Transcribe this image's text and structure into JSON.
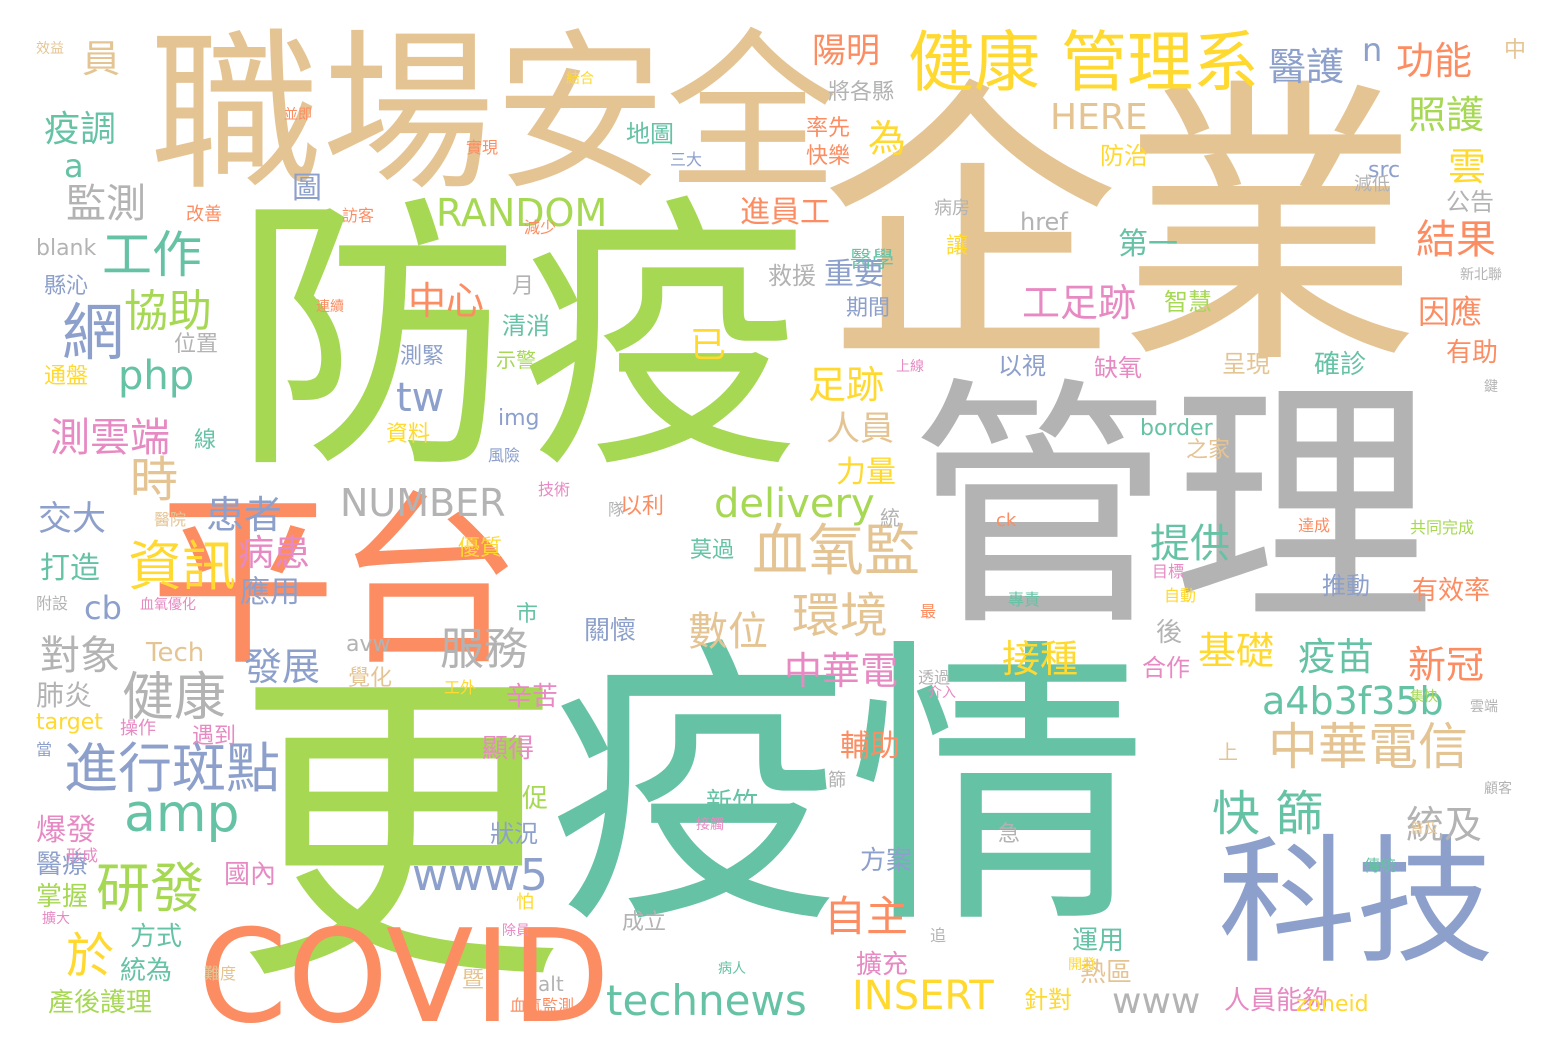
{
  "words": [
    {
      "text": "企業",
      "color": "#e5c494"
    },
    {
      "text": "防疫",
      "color": "#a6d854"
    },
    {
      "text": "疫情",
      "color": "#66c2a5"
    },
    {
      "text": "管理",
      "color": "#b3b3b3"
    },
    {
      "text": "職場安全",
      "color": "#e5c494"
    },
    {
      "text": "平台",
      "color": "#fc8d62"
    },
    {
      "text": "更",
      "color": "#a6d854"
    },
    {
      "text": "COVID",
      "color": "#fc8d62"
    },
    {
      "text": "科技",
      "color": "#8da0cb"
    },
    {
      "text": "健康 管理系",
      "color": "#ffd92f"
    },
    {
      "text": "血氧監",
      "color": "#e5c494"
    },
    {
      "text": "中華電信",
      "color": "#e5c494"
    },
    {
      "text": "進行斑點",
      "color": "#8da0cb"
    },
    {
      "text": "健康",
      "color": "#b3b3b3"
    },
    {
      "text": "環境",
      "color": "#e5c494"
    },
    {
      "text": "資訊",
      "color": "#ffd92f"
    },
    {
      "text": "研發",
      "color": "#a6d854"
    },
    {
      "text": "amp",
      "color": "#66c2a5"
    },
    {
      "text": "technews",
      "color": "#66c2a5"
    },
    {
      "text": "INSERT",
      "color": "#ffd92f"
    },
    {
      "text": "快 篩",
      "color": "#66c2a5"
    },
    {
      "text": "www5",
      "color": "#8da0cb"
    },
    {
      "text": "a4b3f35b",
      "color": "#66c2a5"
    },
    {
      "text": "RANDOM",
      "color": "#a6d854"
    },
    {
      "text": "NUMBER",
      "color": "#b3b3b3"
    },
    {
      "text": "delivery",
      "color": "#a6d854"
    },
    {
      "text": "服務",
      "color": "#b3b3b3"
    },
    {
      "text": "數位",
      "color": "#e5c494"
    },
    {
      "text": "中華電",
      "color": "#e78ac3"
    },
    {
      "text": "發展",
      "color": "#8da0cb"
    },
    {
      "text": "工作",
      "color": "#66c2a5"
    },
    {
      "text": "網",
      "color": "#8da0cb"
    },
    {
      "text": "協助",
      "color": "#a6d854"
    },
    {
      "text": "php",
      "color": "#66c2a5"
    },
    {
      "text": "測雲端",
      "color": "#e78ac3"
    },
    {
      "text": "時",
      "color": "#e5c494"
    },
    {
      "text": "患者",
      "color": "#8da0cb"
    },
    {
      "text": "病患",
      "color": "#e78ac3"
    },
    {
      "text": "自主",
      "color": "#fc8d62"
    },
    {
      "text": "基礎",
      "color": "#ffd92f"
    },
    {
      "text": "疫苗",
      "color": "#66c2a5"
    },
    {
      "text": "新冠",
      "color": "#fc8d62"
    },
    {
      "text": "接種",
      "color": "#ffd92f"
    },
    {
      "text": "提供",
      "color": "#66c2a5"
    },
    {
      "text": "工足跡",
      "color": "#e78ac3"
    },
    {
      "text": "中心",
      "color": "#fc8d62"
    },
    {
      "text": "足跡",
      "color": "#ffd92f"
    },
    {
      "text": "人員",
      "color": "#e5c494"
    },
    {
      "text": "tw",
      "color": "#8da0cb"
    },
    {
      "text": "結果",
      "color": "#fc8d62"
    },
    {
      "text": "統及",
      "color": "#b3b3b3"
    },
    {
      "text": "www",
      "color": "#b3b3b3"
    },
    {
      "text": "於",
      "color": "#ffd92f"
    },
    {
      "text": "對象",
      "color": "#b3b3b3"
    },
    {
      "text": "交大",
      "color": "#8da0cb"
    },
    {
      "text": "監測",
      "color": "#b3b3b3"
    },
    {
      "text": "疫調",
      "color": "#66c2a5"
    },
    {
      "text": "陽明",
      "color": "#fc8d62"
    },
    {
      "text": "醫護",
      "color": "#8da0cb"
    },
    {
      "text": "功能",
      "color": "#fc8d62"
    },
    {
      "text": "照護",
      "color": "#a6d854"
    },
    {
      "text": "HERE",
      "color": "#e5c494"
    },
    {
      "text": "雲",
      "color": "#ffd92f"
    },
    {
      "text": "為",
      "color": "#ffd92f"
    },
    {
      "text": "圖",
      "color": "#8da0cb"
    },
    {
      "text": "員",
      "color": "#e5c494"
    },
    {
      "text": "n",
      "color": "#8da0cb"
    },
    {
      "text": "a",
      "color": "#66c2a5"
    },
    {
      "text": "進員工",
      "color": "#fc8d62"
    },
    {
      "text": "第一",
      "color": "#66c2a5"
    },
    {
      "text": "重要",
      "color": "#8da0cb"
    },
    {
      "text": "因應",
      "color": "#fc8d62"
    },
    {
      "text": "應用",
      "color": "#8da0cb"
    },
    {
      "text": "輔助",
      "color": "#fc8d62"
    },
    {
      "text": "力量",
      "color": "#ffd92f"
    },
    {
      "text": "已",
      "color": "#ffd92f"
    },
    {
      "text": "cb",
      "color": "#8da0cb"
    },
    {
      "text": "Tech",
      "color": "#e5c494"
    },
    {
      "text": "肺炎",
      "color": "#b3b3b3"
    },
    {
      "text": "打造",
      "color": "#66c2a5"
    },
    {
      "text": "爆發",
      "color": "#e78ac3"
    },
    {
      "text": "醫療",
      "color": "#8da0cb"
    },
    {
      "text": "掌握",
      "color": "#a6d854"
    },
    {
      "text": "產後護理",
      "color": "#a6d854"
    },
    {
      "text": "統為",
      "color": "#66c2a5"
    },
    {
      "text": "方式",
      "color": "#66c2a5"
    },
    {
      "text": "國內",
      "color": "#e78ac3"
    },
    {
      "text": "及促",
      "color": "#a6d854"
    },
    {
      "text": "狀況",
      "color": "#8da0cb"
    },
    {
      "text": "顯得",
      "color": "#e78ac3"
    },
    {
      "text": "辛苦",
      "color": "#e78ac3"
    },
    {
      "text": "新竹",
      "color": "#66c2a5"
    },
    {
      "text": "擴充",
      "color": "#e78ac3"
    },
    {
      "text": "方案",
      "color": "#8da0cb"
    },
    {
      "text": "運用",
      "color": "#66c2a5"
    },
    {
      "text": "熱區",
      "color": "#e5c494"
    },
    {
      "text": "針對",
      "color": "#ffd92f"
    },
    {
      "text": "人員能夠",
      "color": "#e78ac3"
    },
    {
      "text": "zoneid",
      "color": "#ffd92f"
    },
    {
      "text": "有效率",
      "color": "#fc8d62"
    },
    {
      "text": "推動",
      "color": "#8da0cb"
    },
    {
      "text": "合作",
      "color": "#e78ac3"
    },
    {
      "text": "後",
      "color": "#b3b3b3"
    },
    {
      "text": "關懷",
      "color": "#8da0cb"
    },
    {
      "text": "有助",
      "color": "#fc8d62"
    },
    {
      "text": "公告",
      "color": "#b3b3b3"
    },
    {
      "text": "確診",
      "color": "#66c2a5"
    },
    {
      "text": "呈現",
      "color": "#e5c494"
    },
    {
      "text": "智慧",
      "color": "#a6d854"
    },
    {
      "text": "缺氧",
      "color": "#e78ac3"
    },
    {
      "text": "以視",
      "color": "#8da0cb"
    },
    {
      "text": "border",
      "color": "#66c2a5"
    },
    {
      "text": "之家",
      "color": "#e5c494"
    },
    {
      "text": "src",
      "color": "#8da0cb"
    },
    {
      "text": "href",
      "color": "#b3b3b3"
    },
    {
      "text": "防治",
      "color": "#ffd92f"
    },
    {
      "text": "減低",
      "color": "#b3b3b3"
    },
    {
      "text": "率先",
      "color": "#fc8d62"
    },
    {
      "text": "快樂",
      "color": "#fc8d62"
    },
    {
      "text": "地圖",
      "color": "#66c2a5"
    },
    {
      "text": "將各縣",
      "color": "#b3b3b3"
    },
    {
      "text": "醫學",
      "color": "#66c2a5"
    },
    {
      "text": "期間",
      "color": "#8da0cb"
    },
    {
      "text": "救援",
      "color": "#b3b3b3"
    },
    {
      "text": "讓",
      "color": "#ffd92f"
    },
    {
      "text": "病房",
      "color": "#b3b3b3"
    },
    {
      "text": "清消",
      "color": "#66c2a5"
    },
    {
      "text": "測緊",
      "color": "#8da0cb"
    },
    {
      "text": "示警",
      "color": "#a6d854"
    },
    {
      "text": "月",
      "color": "#b3b3b3"
    },
    {
      "text": "位置",
      "color": "#b3b3b3"
    },
    {
      "text": "通盤",
      "color": "#ffd92f"
    },
    {
      "text": "縣沁",
      "color": "#8da0cb"
    },
    {
      "text": "blank",
      "color": "#b3b3b3"
    },
    {
      "text": "改善",
      "color": "#fc8d62"
    },
    {
      "text": "訪客",
      "color": "#fc8d62"
    },
    {
      "text": "減少",
      "color": "#fc8d62"
    },
    {
      "text": "img",
      "color": "#8da0cb"
    },
    {
      "text": "資料",
      "color": "#ffd92f"
    },
    {
      "text": "風險",
      "color": "#8da0cb"
    },
    {
      "text": "技術",
      "color": "#e78ac3"
    },
    {
      "text": "以利",
      "color": "#fc8d62"
    },
    {
      "text": "隊",
      "color": "#b3b3b3"
    },
    {
      "text": "統",
      "color": "#b3b3b3"
    },
    {
      "text": "ck",
      "color": "#fc8d62"
    },
    {
      "text": "達成",
      "color": "#fc8d62"
    },
    {
      "text": "共同完成",
      "color": "#a6d854"
    },
    {
      "text": "莫過",
      "color": "#66c2a5"
    },
    {
      "text": "優質",
      "color": "#ffd92f"
    },
    {
      "text": "醫院",
      "color": "#e5c494"
    },
    {
      "text": "血氧優化",
      "color": "#e78ac3"
    },
    {
      "text": "附設",
      "color": "#b3b3b3"
    },
    {
      "text": "目標",
      "color": "#e78ac3"
    },
    {
      "text": "自動",
      "color": "#ffd92f"
    },
    {
      "text": "專責",
      "color": "#66c2a5"
    },
    {
      "text": "市",
      "color": "#66c2a5"
    },
    {
      "text": "最",
      "color": "#fc8d62"
    },
    {
      "text": "avw",
      "color": "#b3b3b3"
    },
    {
      "text": "透過",
      "color": "#b3b3b3"
    },
    {
      "text": "工外",
      "color": "#ffd92f"
    },
    {
      "text": "覺化",
      "color": "#e5c494"
    },
    {
      "text": "介入",
      "color": "#e78ac3"
    },
    {
      "text": "target",
      "color": "#ffd92f"
    },
    {
      "text": "雲端",
      "color": "#b3b3b3"
    },
    {
      "text": "集快",
      "color": "#a6d854"
    },
    {
      "text": "上",
      "color": "#e5c494"
    },
    {
      "text": "顧客",
      "color": "#b3b3b3"
    },
    {
      "text": "操作",
      "color": "#e78ac3"
    },
    {
      "text": "遇到",
      "color": "#e78ac3"
    },
    {
      "text": "當",
      "color": "#8da0cb"
    },
    {
      "text": "篩",
      "color": "#b3b3b3"
    },
    {
      "text": "急",
      "color": "#b3b3b3"
    },
    {
      "text": "接觸",
      "color": "#e78ac3"
    },
    {
      "text": "普及",
      "color": "#e5c494"
    },
    {
      "text": "傳統",
      "color": "#66c2a5"
    },
    {
      "text": "形成",
      "color": "#e78ac3"
    },
    {
      "text": "線",
      "color": "#66c2a5"
    },
    {
      "text": "擴大",
      "color": "#e78ac3"
    },
    {
      "text": "怕",
      "color": "#ffd92f"
    },
    {
      "text": "除員",
      "color": "#e78ac3"
    },
    {
      "text": "成立",
      "color": "#b3b3b3"
    },
    {
      "text": "追",
      "color": "#b3b3b3"
    },
    {
      "text": "病人",
      "color": "#66c2a5"
    },
    {
      "text": "難度",
      "color": "#e5c494"
    },
    {
      "text": "暨",
      "color": "#e5c494"
    },
    {
      "text": "alt",
      "color": "#b3b3b3"
    },
    {
      "text": "血氧監測",
      "color": "#fc8d62"
    },
    {
      "text": "開發",
      "color": "#ffd92f"
    },
    {
      "text": "上線",
      "color": "#e78ac3"
    },
    {
      "text": "鍵",
      "color": "#b3b3b3"
    },
    {
      "text": "新北聯",
      "color": "#b3b3b3"
    },
    {
      "text": "效益",
      "color": "#e5c494"
    },
    {
      "text": "結合",
      "color": "#ffd92f"
    },
    {
      "text": "並即",
      "color": "#fc8d62"
    },
    {
      "text": "實現",
      "color": "#fc8d62"
    },
    {
      "text": "三大",
      "color": "#8da0cb"
    },
    {
      "text": "連續",
      "color": "#fc8d62"
    },
    {
      "text": "中",
      "color": "#e5c494"
    }
  ]
}
